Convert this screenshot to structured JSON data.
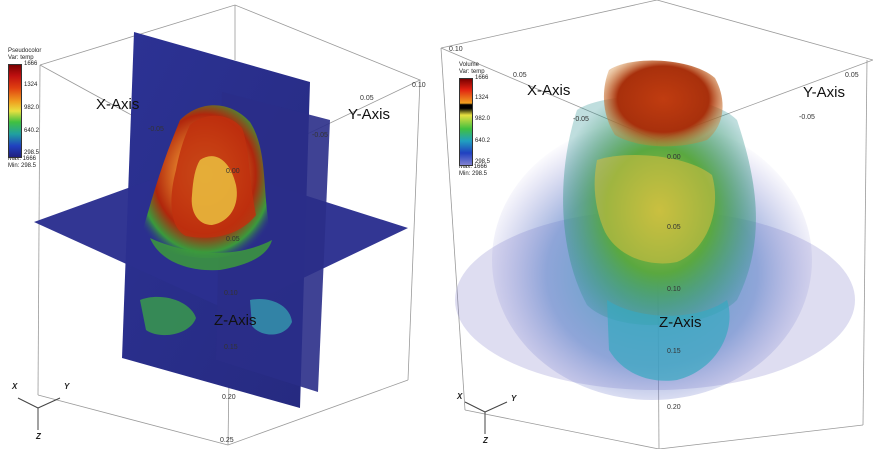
{
  "colors": {
    "background": "#ffffff",
    "slice_blue": "#2a2f8c",
    "hot_red": "#b0200a",
    "warm_orange": "#e07020",
    "mid_yellow": "#e8d040",
    "mid_green": "#3aa040",
    "cool_cyan": "#30a0c8",
    "cold_purple": "#5a5ab8"
  },
  "left_panel": {
    "legend": {
      "title_1": "Pseudocolor",
      "title_2": "Var: temp",
      "max_top": "1666",
      "ticks": [
        "1324",
        "982.0",
        "640.2",
        "298.5"
      ],
      "stat_max": "Max: 1666",
      "stat_min": "Min: 298.5"
    },
    "axis_labels": {
      "x": "X-Axis",
      "y": "Y-Axis",
      "z": "Z-Axis"
    },
    "ticks": {
      "top_right_1": "0.10",
      "top_right_2": "0.05",
      "y_neg": "-0.05",
      "x_neg": "-0.05",
      "center": "0.00",
      "z_05": "0.05",
      "z_10": "0.10",
      "z_15": "0.15",
      "z_20": "0.20",
      "z_25": "0.25"
    },
    "triad": {
      "x": "X",
      "y": "Y",
      "z": "Z"
    }
  },
  "right_panel": {
    "legend": {
      "title_1": "Volume",
      "title_2": "Var: temp",
      "max_top": "1666",
      "ticks": [
        "1324",
        "982.0",
        "640.2",
        "298.5"
      ],
      "stat_max": "Max: 1666",
      "stat_min": "Min: 298.5"
    },
    "axis_labels": {
      "x": "X-Axis",
      "y": "Y-Axis",
      "z": "Z-Axis"
    },
    "ticks": {
      "top_left": "0.10",
      "x_05": "0.05",
      "top_right_05": "0.05",
      "y_neg": "-0.05",
      "center_00": "0.00",
      "x_neg": "-0.05",
      "z_05": "0.05",
      "z_10": "0.10",
      "z_15": "0.15",
      "z_20": "0.20"
    },
    "triad": {
      "x": "X",
      "y": "Y",
      "z": "Z"
    }
  }
}
